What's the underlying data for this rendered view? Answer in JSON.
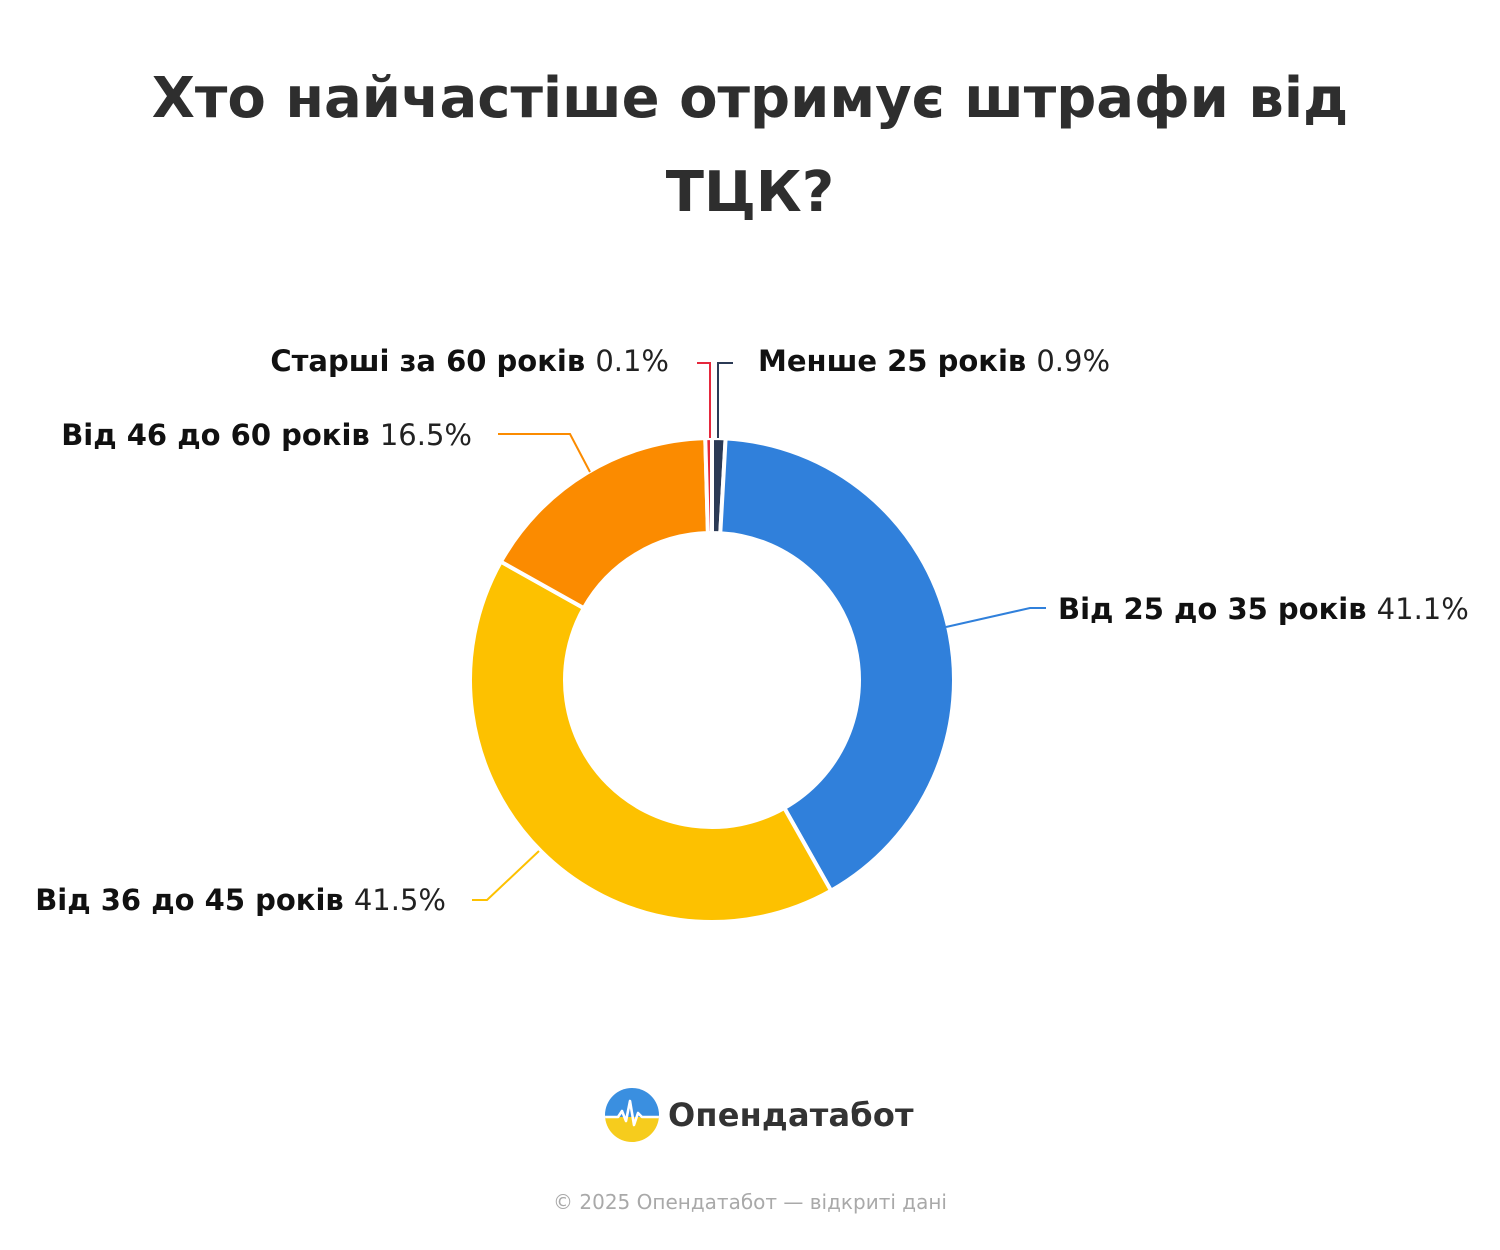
{
  "header": {
    "title": "Хто найчастіше отримує штрафи від ТЦК?"
  },
  "chart_data": {
    "type": "pie",
    "variant": "donut",
    "title": "Хто найчастіше отримує штрафи від ТЦК?",
    "slices": [
      {
        "name": "Менше 25 років",
        "value": 0.9,
        "label": "0.9%",
        "color": "#2b3a55"
      },
      {
        "name": "Від 25 до 35 років",
        "value": 41.1,
        "label": "41.1%",
        "color": "#3080db"
      },
      {
        "name": "Від 36 до 45 років",
        "value": 41.5,
        "label": "41.5%",
        "color": "#fdc100"
      },
      {
        "name": "Від 46 до 60 років",
        "value": 16.5,
        "label": "16.5%",
        "color": "#fb8b00"
      },
      {
        "name": "Старші за 60 років",
        "value": 0.1,
        "label": "0.1%",
        "color": "#e5283c"
      }
    ],
    "start_angle": "top, clockwise",
    "legend": "none (labels on leader lines)"
  },
  "brand": {
    "name": "Опендатабот",
    "logo_icon": "sun-wave-logo-icon"
  },
  "footer": {
    "text": "© 2025 Опендатабот — відкриті дані"
  }
}
